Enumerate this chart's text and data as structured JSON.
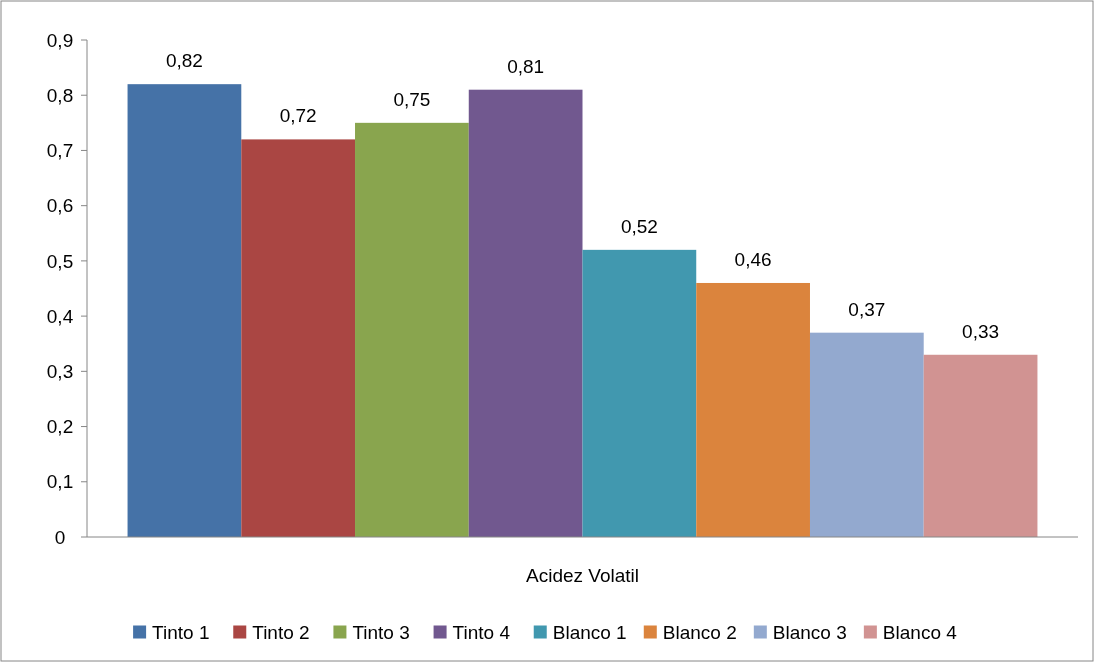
{
  "chart_data": {
    "type": "bar",
    "categories": [
      "Acidez Volatil"
    ],
    "series": [
      {
        "name": "Tinto 1",
        "color": "#4572a7",
        "values": [
          0.82
        ],
        "value_labels": [
          "0,82"
        ]
      },
      {
        "name": "Tinto 2",
        "color": "#aa4643",
        "values": [
          0.72
        ],
        "value_labels": [
          "0,72"
        ]
      },
      {
        "name": "Tinto 3",
        "color": "#89a54e",
        "values": [
          0.75
        ],
        "value_labels": [
          "0,75"
        ]
      },
      {
        "name": "Tinto 4",
        "color": "#71588f",
        "values": [
          0.81
        ],
        "value_labels": [
          "0,81"
        ]
      },
      {
        "name": "Blanco 1",
        "color": "#4198af",
        "values": [
          0.52
        ],
        "value_labels": [
          "0,52"
        ]
      },
      {
        "name": "Blanco 2",
        "color": "#db843d",
        "values": [
          0.46
        ],
        "value_labels": [
          "0,46"
        ]
      },
      {
        "name": "Blanco 3",
        "color": "#93a9cf",
        "values": [
          0.37
        ],
        "value_labels": [
          "0,37"
        ]
      },
      {
        "name": "Blanco 4",
        "color": "#d19392",
        "values": [
          0.33
        ],
        "value_labels": [
          "0,33"
        ]
      }
    ],
    "ylim": [
      0,
      0.9
    ],
    "yticks": [
      0,
      {
        "value": 0.1,
        "label": "0,1"
      },
      {
        "value": 0.2,
        "label": "0,2"
      },
      {
        "value": 0.3,
        "label": "0,3"
      },
      {
        "value": 0.4,
        "label": "0,4"
      },
      {
        "value": 0.5,
        "label": "0,5"
      },
      {
        "value": 0.6,
        "label": "0,6"
      },
      {
        "value": 0.7,
        "label": "0,7"
      },
      {
        "value": 0.8,
        "label": "0,8"
      },
      {
        "value": 0.9,
        "label": "0,9"
      }
    ],
    "legend": "bottom"
  }
}
